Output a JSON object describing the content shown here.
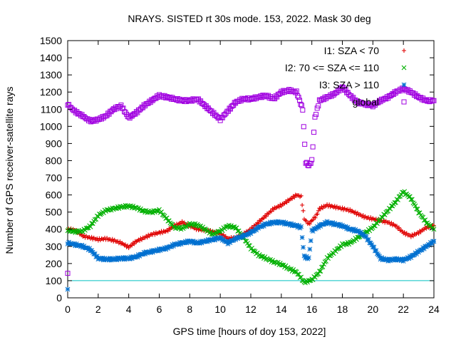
{
  "chart_data": {
    "type": "scatter",
    "title": "NRAYS. SISTED rt 30s mode. 153, 2022. Mask 30 deg",
    "xlabel": "GPS time [hours of doy 153, 2022]",
    "ylabel": "Number of GPS receiver-satellite rays",
    "xlim": [
      0,
      24
    ],
    "ylim": [
      0,
      1500
    ],
    "xticks": [
      0,
      2,
      4,
      6,
      8,
      10,
      12,
      14,
      16,
      18,
      20,
      22,
      24
    ],
    "yticks": [
      0,
      100,
      200,
      300,
      400,
      500,
      600,
      700,
      800,
      900,
      1000,
      1100,
      1200,
      1300,
      1400,
      1500
    ],
    "grid": false,
    "legend_position": "top-right",
    "reference_line": {
      "y": 100,
      "color": "#00c0c0"
    },
    "series": [
      {
        "name": "I1: SZA < 70",
        "marker": "+",
        "color": "#e00000",
        "x": [
          0,
          0.5,
          1,
          1.5,
          2,
          2.5,
          3,
          3.5,
          4,
          4.5,
          5,
          5.5,
          6,
          6.5,
          7,
          7.5,
          8,
          8.5,
          9,
          9.5,
          10,
          10.5,
          11,
          11.5,
          12,
          12.5,
          13,
          13.5,
          14,
          14.5,
          15,
          15.3,
          15.5,
          15.8,
          16,
          16.3,
          16.5,
          17,
          17.5,
          18,
          18.5,
          19,
          19.5,
          20,
          20.5,
          21,
          21.5,
          22,
          22.5,
          23,
          23.5,
          24
        ],
        "values": [
          400,
          395,
          360,
          350,
          340,
          345,
          335,
          320,
          295,
          330,
          350,
          370,
          380,
          390,
          420,
          440,
          420,
          400,
          395,
          385,
          375,
          345,
          350,
          370,
          400,
          440,
          480,
          520,
          540,
          570,
          600,
          590,
          460,
          430,
          450,
          480,
          520,
          540,
          530,
          520,
          510,
          490,
          470,
          460,
          450,
          440,
          420,
          380,
          360,
          380,
          410,
          420
        ]
      },
      {
        "name": "I2: 70 <= SZA <= 110",
        "marker": "x",
        "color": "#00b000",
        "x": [
          0,
          0.5,
          1,
          1.5,
          2,
          2.5,
          3,
          3.5,
          4,
          4.5,
          5,
          5.5,
          6,
          6.5,
          7,
          7.5,
          8,
          8.5,
          9,
          9.5,
          10,
          10.5,
          11,
          11.5,
          12,
          12.5,
          13,
          13.5,
          14,
          14.5,
          15,
          15.3,
          15.5,
          16,
          16.5,
          17,
          17.5,
          18,
          18.5,
          19,
          19.5,
          20,
          20.5,
          21,
          21.5,
          22,
          22.5,
          23,
          23.5,
          24
        ],
        "values": [
          395,
          385,
          390,
          420,
          480,
          510,
          520,
          530,
          535,
          525,
          505,
          500,
          510,
          460,
          410,
          405,
          430,
          425,
          400,
          370,
          390,
          420,
          410,
          355,
          290,
          250,
          230,
          210,
          195,
          170,
          150,
          115,
          90,
          105,
          150,
          230,
          270,
          310,
          320,
          350,
          380,
          410,
          460,
          510,
          560,
          620,
          580,
          500,
          440,
          400
        ]
      },
      {
        "name": "I3: SZA > 110",
        "marker": "*",
        "color": "#0070d0",
        "x": [
          0,
          0.5,
          1,
          1.5,
          2,
          2.5,
          3,
          3.5,
          4,
          4.5,
          5,
          5.5,
          6,
          6.5,
          7,
          7.5,
          8,
          8.5,
          9,
          9.5,
          10,
          10.5,
          11,
          11.5,
          12,
          12.5,
          13,
          13.5,
          14,
          14.5,
          15,
          15.3,
          15.5,
          15.8,
          16,
          16.5,
          17,
          17.5,
          18,
          18.5,
          19,
          19.5,
          20,
          20.5,
          21,
          21.5,
          22,
          22.5,
          23,
          23.5,
          24
        ],
        "values": [
          320,
          310,
          300,
          280,
          230,
          225,
          225,
          230,
          230,
          240,
          260,
          270,
          280,
          290,
          310,
          320,
          330,
          320,
          330,
          340,
          350,
          320,
          345,
          360,
          380,
          410,
          430,
          440,
          440,
          430,
          420,
          410,
          240,
          230,
          390,
          420,
          440,
          430,
          420,
          400,
          390,
          360,
          300,
          230,
          220,
          225,
          220,
          240,
          270,
          300,
          330
        ]
      },
      {
        "name": "global",
        "marker": "square",
        "color": "#a000e0",
        "x": [
          0,
          0.3,
          0.6,
          1,
          1.3,
          1.6,
          2,
          2.5,
          3,
          3.5,
          4,
          4.5,
          5,
          5.5,
          6,
          6.5,
          7,
          7.5,
          8,
          8.5,
          9,
          9.5,
          10,
          10.3,
          10.6,
          11,
          11.5,
          12,
          12.5,
          13,
          13.5,
          14,
          14.5,
          15,
          15.2,
          15.4,
          15.6,
          15.8,
          16,
          16.2,
          16.5,
          17,
          17.5,
          18,
          18.5,
          19,
          19.5,
          20,
          20.5,
          21,
          21.5,
          22,
          22.5,
          23,
          23.5,
          24
        ],
        "values": [
          1130,
          1100,
          1080,
          1060,
          1040,
          1030,
          1040,
          1060,
          1100,
          1120,
          1050,
          1080,
          1120,
          1150,
          1180,
          1170,
          1160,
          1150,
          1150,
          1160,
          1120,
          1080,
          1040,
          1070,
          1100,
          1140,
          1160,
          1160,
          1170,
          1180,
          1160,
          1200,
          1210,
          1200,
          1150,
          1100,
          790,
          770,
          800,
          1050,
          1150,
          1170,
          1190,
          1230,
          1180,
          1140,
          1130,
          1120,
          1150,
          1170,
          1200,
          1220,
          1200,
          1170,
          1150,
          1150
        ]
      }
    ],
    "isolated_points": [
      {
        "series": "global",
        "x": 0,
        "y": 143
      },
      {
        "series": "I3: SZA > 110",
        "x": 0,
        "y": 50
      }
    ]
  }
}
